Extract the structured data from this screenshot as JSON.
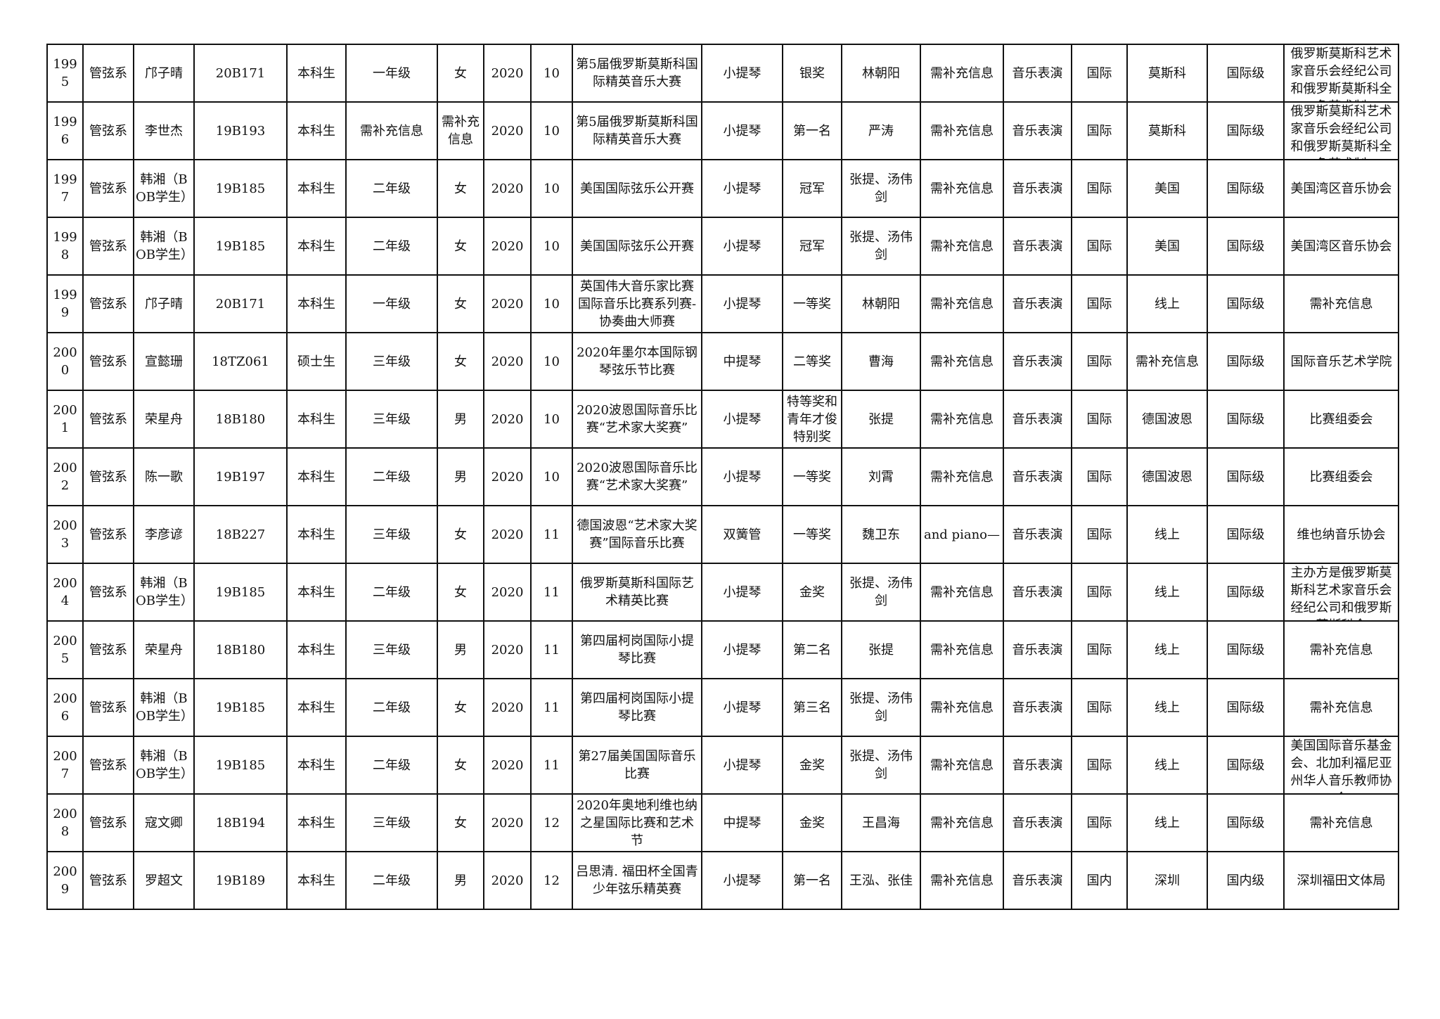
{
  "table": {
    "rows": [
      [
        "1995",
        "管弦系",
        "邝子晴",
        "20B171",
        "本科生",
        "一年级",
        "女",
        "2020",
        "10",
        "第5届俄罗斯莫斯科国际精英音乐大赛",
        "小提琴",
        "银奖",
        "林朝阳",
        "需补充信息",
        "音乐表演",
        "国际",
        "莫斯科",
        "国际级",
        "俄罗斯莫斯科艺术家音乐会经纪公司和俄罗斯莫斯科全鱼艺术制"
      ],
      [
        "1996",
        "管弦系",
        "李世杰",
        "19B193",
        "本科生",
        "需补充信息",
        "需补充信息",
        "2020",
        "10",
        "第5届俄罗斯莫斯科国际精英音乐大赛",
        "小提琴",
        "第一名",
        "严涛",
        "需补充信息",
        "音乐表演",
        "国际",
        "莫斯科",
        "国际级",
        "俄罗斯莫斯科艺术家音乐会经纪公司和俄罗斯莫斯科全鱼艺术制"
      ],
      [
        "1997",
        "管弦系",
        "韩湘（BOB学生）",
        "19B185",
        "本科生",
        "二年级",
        "女",
        "2020",
        "10",
        "美国国际弦乐公开赛",
        "小提琴",
        "冠军",
        "张提、汤伟剑",
        "需补充信息",
        "音乐表演",
        "国际",
        "美国",
        "国际级",
        "美国湾区音乐协会"
      ],
      [
        "1998",
        "管弦系",
        "韩湘（BOB学生）",
        "19B185",
        "本科生",
        "二年级",
        "女",
        "2020",
        "10",
        "美国国际弦乐公开赛",
        "小提琴",
        "冠军",
        "张提、汤伟剑",
        "需补充信息",
        "音乐表演",
        "国际",
        "美国",
        "国际级",
        "美国湾区音乐协会"
      ],
      [
        "1999",
        "管弦系",
        "邝子晴",
        "20B171",
        "本科生",
        "一年级",
        "女",
        "2020",
        "10",
        "英国伟大音乐家比赛国际音乐比赛系列赛-协奏曲大师赛",
        "小提琴",
        "一等奖",
        "林朝阳",
        "需补充信息",
        "音乐表演",
        "国际",
        "线上",
        "国际级",
        "需补充信息"
      ],
      [
        "2000",
        "管弦系",
        "宣懿珊",
        "18TZ061",
        "硕士生",
        "三年级",
        "女",
        "2020",
        "10",
        "2020年墨尔本国际钢琴弦乐节比赛",
        "中提琴",
        "二等奖",
        "曹海",
        "需补充信息",
        "音乐表演",
        "国际",
        "需补充信息",
        "国际级",
        "国际音乐艺术学院"
      ],
      [
        "2001",
        "管弦系",
        "荣星舟",
        "18B180",
        "本科生",
        "三年级",
        "男",
        "2020",
        "10",
        "2020波恩国际音乐比赛“艺术家大奖赛”",
        "小提琴",
        "特等奖和青年才俊特别奖",
        "张提",
        "需补充信息",
        "音乐表演",
        "国际",
        "德国波恩",
        "国际级",
        "比赛组委会"
      ],
      [
        "2002",
        "管弦系",
        "陈一歌",
        "19B197",
        "本科生",
        "二年级",
        "男",
        "2020",
        "10",
        "2020波恩国际音乐比赛“艺术家大奖赛”",
        "小提琴",
        "一等奖",
        "刘霄",
        "需补充信息",
        "音乐表演",
        "国际",
        "德国波恩",
        "国际级",
        "比赛组委会"
      ],
      [
        "2003",
        "管弦系",
        "李彦谚",
        "18B227",
        "本科生",
        "三年级",
        "女",
        "2020",
        "11",
        "德国波恩“艺术家大奖赛”国际音乐比赛",
        "双簧管",
        "一等奖",
        "魏卫东",
        "and piano—",
        "音乐表演",
        "国际",
        "线上",
        "国际级",
        "维也纳音乐协会"
      ],
      [
        "2004",
        "管弦系",
        "韩湘（BOB学生）",
        "19B185",
        "本科生",
        "二年级",
        "女",
        "2020",
        "11",
        "俄罗斯莫斯科国际艺术精英比赛",
        "小提琴",
        "金奖",
        "张提、汤伟剑",
        "需补充信息",
        "音乐表演",
        "国际",
        "线上",
        "国际级",
        "主办方是俄罗斯莫斯科艺术家音乐会经纪公司和俄罗斯莫斯科全"
      ],
      [
        "2005",
        "管弦系",
        "荣星舟",
        "18B180",
        "本科生",
        "三年级",
        "男",
        "2020",
        "11",
        "第四届柯岗国际小提琴比赛",
        "小提琴",
        "第二名",
        "张提",
        "需补充信息",
        "音乐表演",
        "国际",
        "线上",
        "国际级",
        "需补充信息"
      ],
      [
        "2006",
        "管弦系",
        "韩湘（BOB学生）",
        "19B185",
        "本科生",
        "二年级",
        "女",
        "2020",
        "11",
        "第四届柯岗国际小提琴比赛",
        "小提琴",
        "第三名",
        "张提、汤伟剑",
        "需补充信息",
        "音乐表演",
        "国际",
        "线上",
        "国际级",
        "需补充信息"
      ],
      [
        "2007",
        "管弦系",
        "韩湘（BOB学生）",
        "19B185",
        "本科生",
        "二年级",
        "女",
        "2020",
        "11",
        "第27届美国国际音乐比赛",
        "小提琴",
        "金奖",
        "张提、汤伟剑",
        "需补充信息",
        "音乐表演",
        "国际",
        "线上",
        "国际级",
        "美国国际音乐基金会、北加利福尼亚州华人音乐教师协会"
      ],
      [
        "2008",
        "管弦系",
        "寇文卿",
        "18B194",
        "本科生",
        "三年级",
        "女",
        "2020",
        "12",
        "2020年奥地利维也纳之星国际比赛和艺术节",
        "中提琴",
        "金奖",
        "王昌海",
        "需补充信息",
        "音乐表演",
        "国际",
        "线上",
        "国际级",
        "需补充信息"
      ],
      [
        "2009",
        "管弦系",
        "罗超文",
        "19B189",
        "本科生",
        "二年级",
        "男",
        "2020",
        "12",
        "吕思清. 福田杯全国青少年弦乐精英赛",
        "小提琴",
        "第一名",
        "王泓、张佳",
        "需补充信息",
        "音乐表演",
        "国内",
        "深圳",
        "国内级",
        "深圳福田文体局"
      ]
    ]
  }
}
